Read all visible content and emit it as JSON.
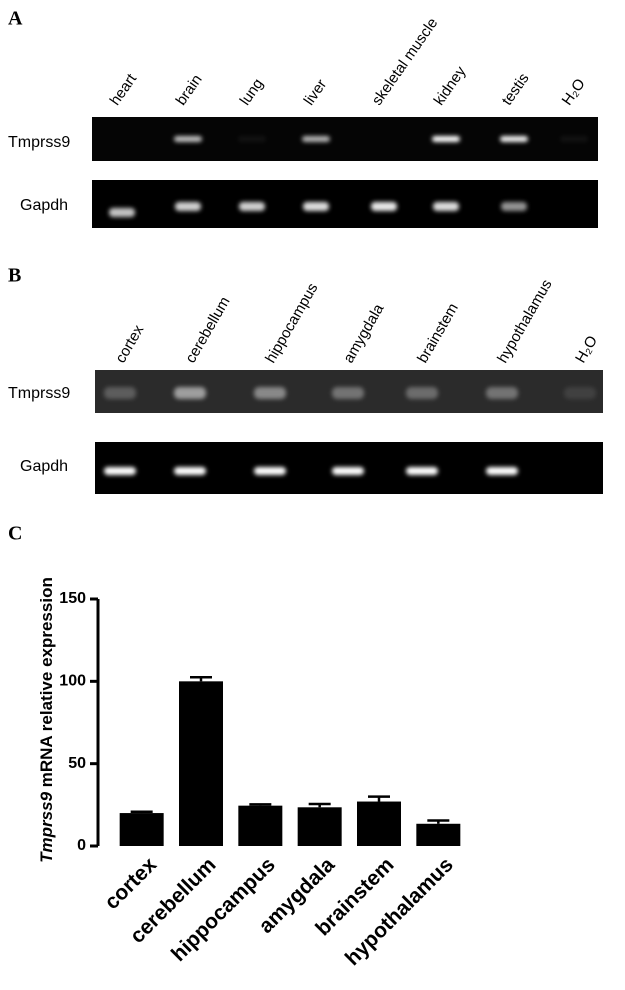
{
  "panel_a": {
    "label": "A",
    "lanes": [
      "heart",
      "brain",
      "lung",
      "liver",
      "skeletal muscle",
      "kidney",
      "testis",
      "H₂O"
    ],
    "rows": [
      "Tmprss9",
      "Gapdh"
    ]
  },
  "panel_b": {
    "label": "B",
    "lanes": [
      "cortex",
      "cerebellum",
      "hippocampus",
      "amygdala",
      "brainstem",
      "hypothalamus",
      "H₂O"
    ],
    "rows": [
      "Tmprss9",
      "Gapdh"
    ]
  },
  "chart_data": {
    "type": "bar",
    "panel_label": "C",
    "ylabel_gene": "Tmprss9",
    "ylabel": "mRNA relative expression",
    "categories": [
      "cortex",
      "cerebellum",
      "hippocampus",
      "amygdala",
      "brainstem",
      "hypothalamus"
    ],
    "values": [
      20,
      100,
      24.5,
      23.5,
      27,
      13.5
    ],
    "errors": [
      0.8,
      2.5,
      0.8,
      2,
      3,
      2
    ],
    "color": "#000000",
    "ylim": [
      0,
      150
    ],
    "yticks": [
      0,
      50,
      100,
      150
    ]
  }
}
